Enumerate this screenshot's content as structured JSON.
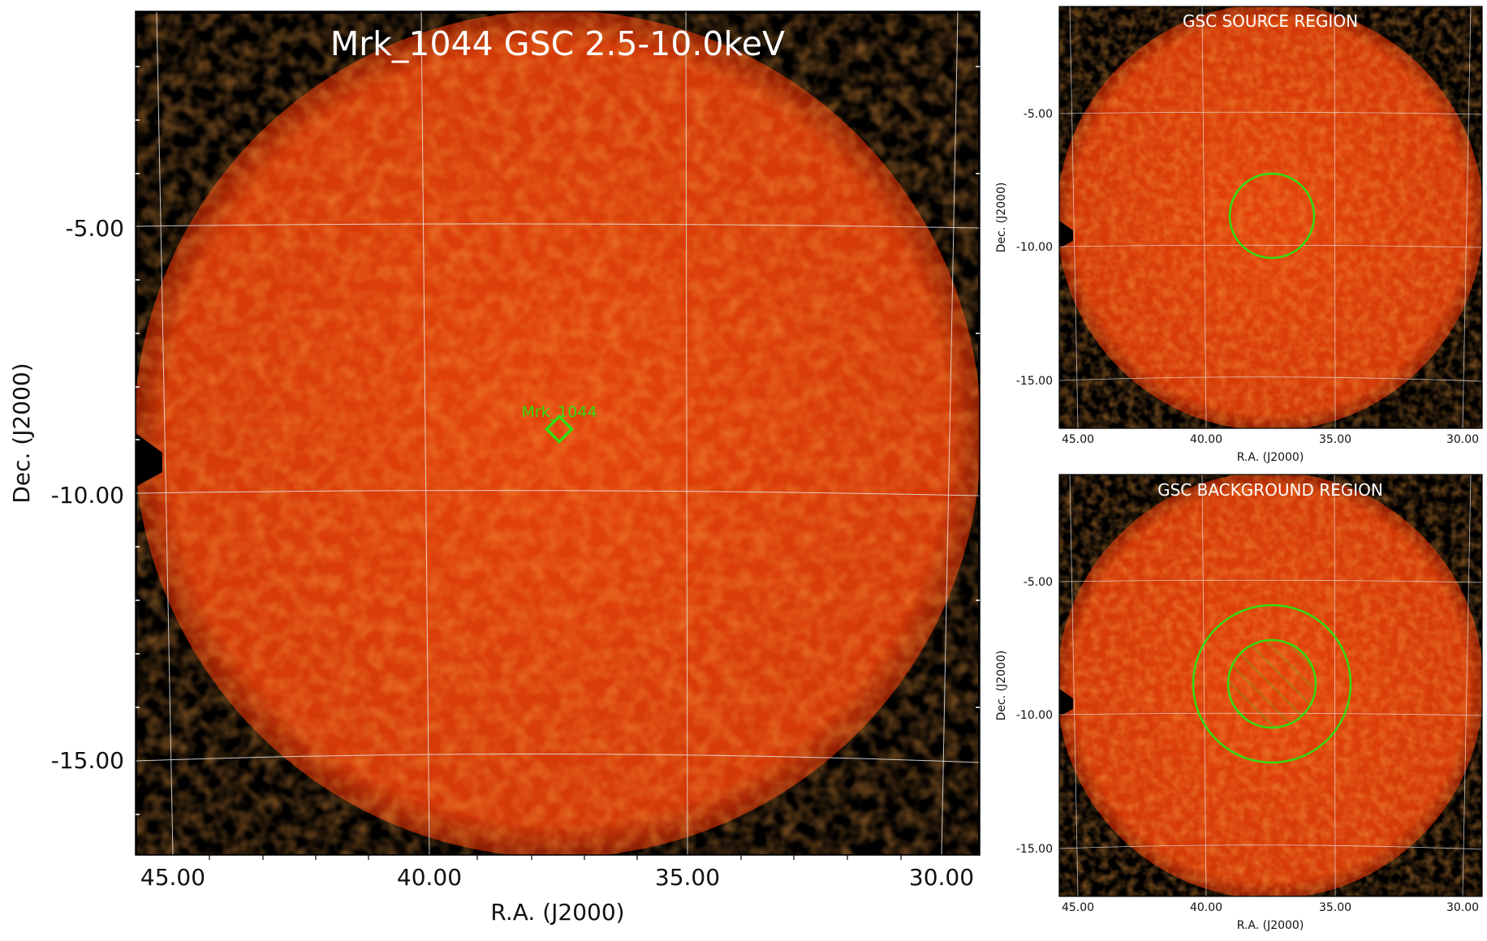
{
  "colors": {
    "background": "#000000",
    "field_center": "#e8460a",
    "field_edge": "#b92c06",
    "grid": "#dddddd",
    "region": "#33dd11",
    "title": "#ffffff"
  },
  "main": {
    "title": "Mrk_1044 GSC 2.5-10.0keV",
    "xlabel": "R.A. (J2000)",
    "ylabel": "Dec. (J2000)",
    "x_ticks": [
      "45.00",
      "40.00",
      "35.00",
      "30.00"
    ],
    "y_ticks": [
      "-5.00",
      "-10.00",
      "-15.00"
    ],
    "source_label": "Mrk_1044",
    "source_marker": "diamond"
  },
  "source_panel": {
    "title": "GSC SOURCE REGION",
    "xlabel": "R.A. (J2000)",
    "ylabel": "Dec. (J2000)",
    "x_ticks": [
      "45.00",
      "40.00",
      "35.00",
      "30.00"
    ],
    "y_ticks": [
      "-5.00",
      "-10.00",
      "-15.00"
    ],
    "region": "circle"
  },
  "background_panel": {
    "title": "GSC BACKGROUND REGION",
    "xlabel": "R.A. (J2000)",
    "ylabel": "Dec. (J2000)",
    "x_ticks": [
      "45.00",
      "40.00",
      "35.00",
      "30.00"
    ],
    "y_ticks": [
      "-5.00",
      "-10.00",
      "-15.00"
    ],
    "region": "annulus with hatched excluded inner circle"
  }
}
